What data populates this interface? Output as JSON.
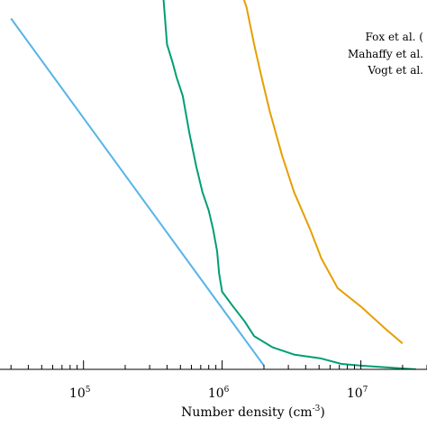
{
  "chart_data": {
    "type": "line",
    "xlabel": "Number density (cm",
    "xlabel_exp": "-3",
    "xlabel_close": ")",
    "x_scale": "log",
    "xlim": [
      25000,
      30000000
    ],
    "ylim": [
      0,
      100
    ],
    "grid": false,
    "legend_position": "top-right",
    "x_ticks": [
      {
        "value": 100000,
        "base": "10",
        "exp": "5"
      },
      {
        "value": 1000000,
        "base": "10",
        "exp": "6"
      },
      {
        "value": 10000000,
        "base": "10",
        "exp": "7"
      }
    ],
    "legend": [
      {
        "text": "Fox et al. ("
      },
      {
        "text": "Mahaffy et al."
      },
      {
        "text": "Vogt et al."
      }
    ],
    "series": [
      {
        "color": "#56b4e9",
        "points": [
          [
            30000,
            95
          ],
          [
            2000000,
            1
          ]
        ]
      },
      {
        "color": "#009e73",
        "points": [
          [
            360000,
            110
          ],
          [
            380000,
            99
          ],
          [
            400000,
            88
          ],
          [
            440000,
            83
          ],
          [
            470000,
            79
          ],
          [
            520000,
            74
          ],
          [
            580000,
            64
          ],
          [
            650000,
            55
          ],
          [
            720000,
            48
          ],
          [
            800000,
            43
          ],
          [
            860000,
            38
          ],
          [
            920000,
            32
          ],
          [
            950000,
            26
          ],
          [
            1000000,
            21
          ],
          [
            1200000,
            17
          ],
          [
            1450000,
            13
          ],
          [
            1700000,
            9
          ],
          [
            2300000,
            6
          ],
          [
            3300000,
            4
          ],
          [
            5100000,
            3
          ],
          [
            7200000,
            1.5
          ],
          [
            10000000,
            1.0
          ],
          [
            25000000,
            0
          ]
        ]
      },
      {
        "color": "#e69f00",
        "points": [
          [
            1300000,
            105
          ],
          [
            1500000,
            98
          ],
          [
            1700000,
            88
          ],
          [
            1900000,
            80
          ],
          [
            2200000,
            70
          ],
          [
            2700000,
            58
          ],
          [
            3300000,
            48
          ],
          [
            4300000,
            38
          ],
          [
            5200000,
            30
          ],
          [
            6800000,
            22
          ],
          [
            10000000,
            17
          ],
          [
            15000000,
            11
          ],
          [
            20000000,
            7
          ]
        ]
      }
    ]
  }
}
